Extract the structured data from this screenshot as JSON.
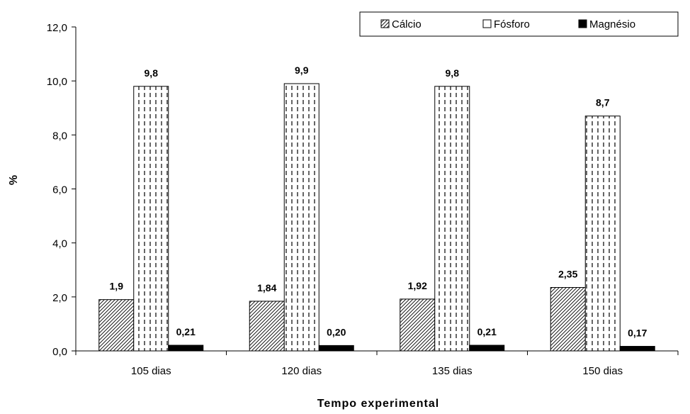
{
  "chart_data": {
    "type": "bar",
    "title": "",
    "xlabel": "Tempo experimental",
    "ylabel": "%",
    "categories": [
      "105 dias",
      "120 dias",
      "135 dias",
      "150 dias"
    ],
    "ylim": [
      0,
      12
    ],
    "yticks": [
      "0,0",
      "2,0",
      "4,0",
      "6,0",
      "8,0",
      "10,0",
      "12,0"
    ],
    "ytick_values": [
      0,
      2,
      4,
      6,
      8,
      10,
      12
    ],
    "grid": false,
    "legend_position": "top-right",
    "series": [
      {
        "name": "Cálcio",
        "pattern": "diagonal-hatch",
        "values": [
          1.9,
          1.84,
          1.92,
          2.35
        ],
        "labels": [
          "1,9",
          "1,84",
          "1,92",
          "2,35"
        ]
      },
      {
        "name": "Fósforo",
        "pattern": "vertical-dashes",
        "values": [
          9.8,
          9.9,
          9.8,
          8.7
        ],
        "labels": [
          "9,8",
          "9,9",
          "9,8",
          "8,7"
        ]
      },
      {
        "name": "Magnésio",
        "pattern": "solid-black",
        "values": [
          0.21,
          0.2,
          0.21,
          0.17
        ],
        "labels": [
          "0,21",
          "0,20",
          "0,21",
          "0,17"
        ]
      }
    ],
    "colors": {
      "axis": "#000000",
      "fill_solid": "#000000",
      "background": "#ffffff"
    }
  }
}
